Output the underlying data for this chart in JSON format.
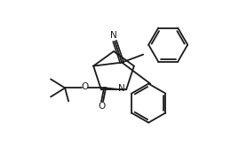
{
  "background_color": "#ffffff",
  "lw": 1.3,
  "color": "#1a1a1a",
  "figsize": [
    2.69,
    1.65
  ],
  "dpi": 100,
  "xlim": [
    0,
    269
  ],
  "ylim": [
    0,
    165
  ]
}
